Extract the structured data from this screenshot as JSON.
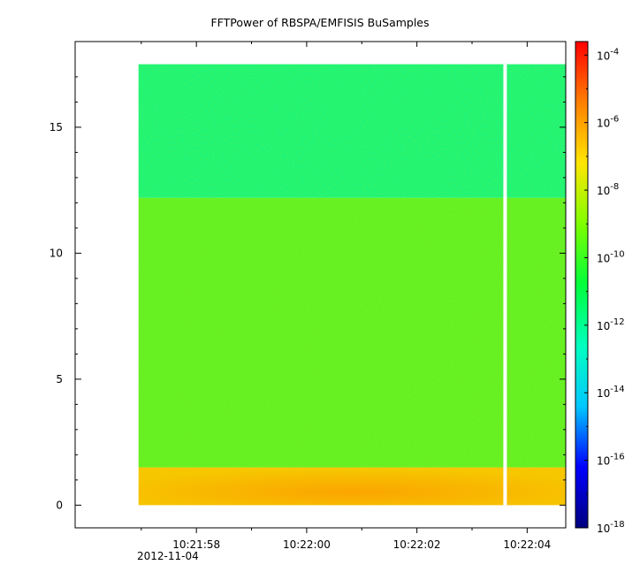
{
  "chart_data": {
    "type": "heatmap",
    "title": "FFTPower of RBSPA/EMFISIS  BuSamples",
    "xlabel": "",
    "ylabel": "",
    "x_date_label": "2012-11-04",
    "x_ticks": [
      "10:21:58",
      "10:22:00",
      "10:22:02",
      "10:22:04"
    ],
    "x_range_seconds_past_10_21_00": [
      55.8,
      64.7
    ],
    "y_ticks": [
      "0",
      "5",
      "10",
      "15"
    ],
    "ylim": [
      -0.9,
      18.4
    ],
    "data_y_extent": [
      0,
      17.5
    ],
    "gap_at": "10:22:03.6",
    "colorbar": {
      "scale": "log",
      "range_exponents": [
        -18,
        -3.6
      ],
      "tick_exponents": [
        "-4",
        "-6",
        "-8",
        "-10",
        "-12",
        "-14",
        "-16",
        "-18"
      ],
      "colors": [
        "#00007f",
        "#0000ff",
        "#00c8ff",
        "#00ffbe",
        "#00ff3c",
        "#7fff00",
        "#ffe600",
        "#ff7f00",
        "#ff0000"
      ]
    },
    "bands": [
      {
        "y_from": 0,
        "y_to": 1.5,
        "log10_power": -8.6,
        "color": "#ffc000"
      },
      {
        "y_from": 1.5,
        "y_to": 12.2,
        "log10_power": -10.6,
        "color": "#5cf028"
      },
      {
        "y_from": 12.2,
        "y_to": 17.5,
        "log10_power": -11.8,
        "color": "#10f482"
      }
    ]
  }
}
